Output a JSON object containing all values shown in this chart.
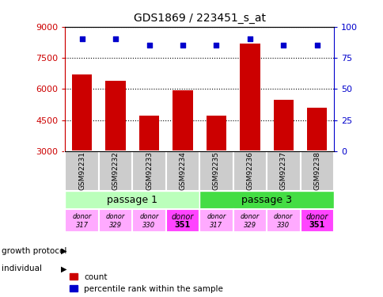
{
  "title": "GDS1869 / 223451_s_at",
  "samples": [
    "GSM92231",
    "GSM92232",
    "GSM92233",
    "GSM92234",
    "GSM92235",
    "GSM92236",
    "GSM92237",
    "GSM92238"
  ],
  "counts": [
    6700,
    6400,
    4700,
    5950,
    4700,
    8200,
    5500,
    5100
  ],
  "percentiles": [
    90,
    90,
    85,
    85,
    85,
    90,
    85,
    85
  ],
  "ylim_left": [
    3000,
    9000
  ],
  "ylim_right": [
    0,
    100
  ],
  "yticks_left": [
    3000,
    4500,
    6000,
    7500,
    9000
  ],
  "yticks_right": [
    0,
    25,
    50,
    75,
    100
  ],
  "bar_color": "#cc0000",
  "dot_color": "#0000cc",
  "bar_width": 0.6,
  "passage1_color": "#bbffbb",
  "passage3_color": "#44dd44",
  "ind_light_color": "#ffaaff",
  "ind_dark_color": "#ff44ff",
  "ind_labels_top": [
    "donor",
    "donor",
    "donor",
    "donor",
    "donor",
    "donor",
    "donor",
    "donor"
  ],
  "ind_labels_bot": [
    "317",
    "329",
    "330",
    "351",
    "317",
    "329",
    "330",
    "351"
  ],
  "ind_dark": [
    3,
    7
  ],
  "left_axis_color": "#cc0000",
  "right_axis_color": "#0000cc",
  "sample_box_color": "#cccccc",
  "legend_items": [
    "count",
    "percentile rank within the sample"
  ]
}
